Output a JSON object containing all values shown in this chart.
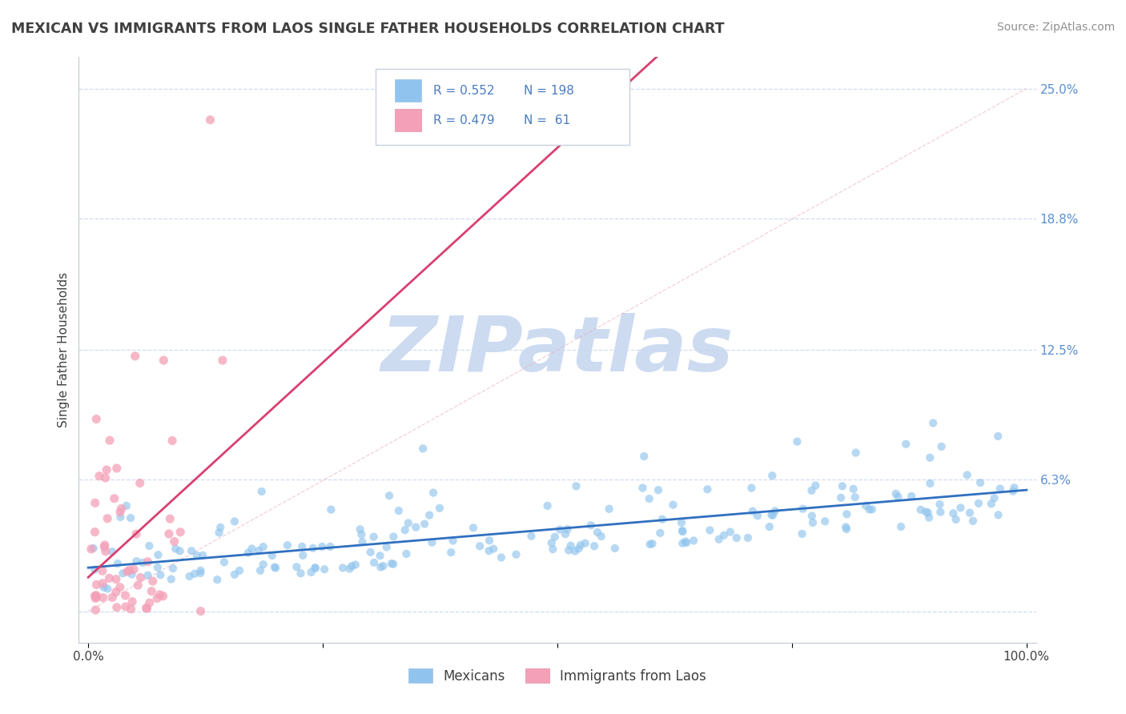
{
  "title": "MEXICAN VS IMMIGRANTS FROM LAOS SINGLE FATHER HOUSEHOLDS CORRELATION CHART",
  "source": "Source: ZipAtlas.com",
  "ylabel": "Single Father Households",
  "yticks": [
    0.0,
    0.063,
    0.125,
    0.188,
    0.25
  ],
  "ytick_labels": [
    "",
    "6.3%",
    "12.5%",
    "18.8%",
    "25.0%"
  ],
  "xlim": [
    -0.01,
    1.01
  ],
  "ylim": [
    -0.015,
    0.265
  ],
  "blue_color": "#90C4EE",
  "pink_color": "#F4A0B8",
  "blue_line_color": "#3070C0",
  "pink_line_color": "#D84070",
  "legend_blue_R": "0.552",
  "legend_blue_N": "198",
  "legend_pink_R": "0.479",
  "legend_pink_N": "61",
  "watermark": "ZIPatlas",
  "watermark_color": "#C8D8F0",
  "background_color": "#FFFFFF",
  "grid_color": "#D0DCF0",
  "title_color": "#404040",
  "n_blue": 198,
  "n_pink": 61,
  "blue_R": 0.552,
  "pink_R": 0.479
}
